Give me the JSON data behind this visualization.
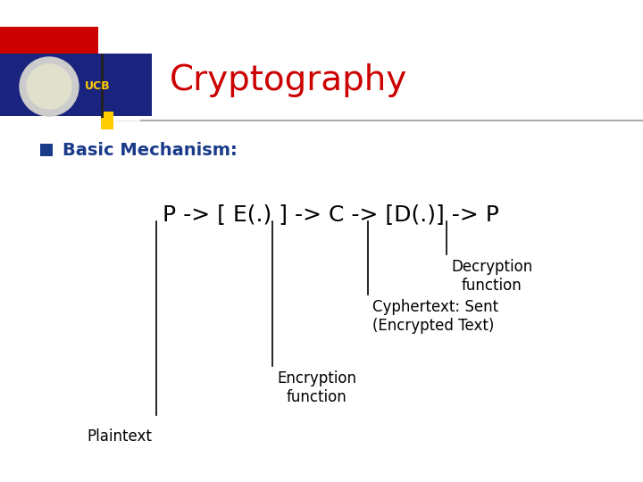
{
  "title": "Cryptography",
  "title_color": "#cc0000",
  "subtitle": "Basic Mechanism:",
  "subtitle_color": "#1a3a8a",
  "background_color": "#ffffff",
  "header_blue_color": "#1a237e",
  "header_bar_yellow_color": "#ffcc00",
  "header_bar_black_color": "#222222",
  "ucb_text_color": "#ffcc00",
  "formula_color": "#000000",
  "bullet_color": "#1a3a8a",
  "formula": "P -> [ E(.) ] -> C -> [D(.)] -> P",
  "font_family": "DejaVu Sans",
  "formula_font": "DejaVu Sans"
}
